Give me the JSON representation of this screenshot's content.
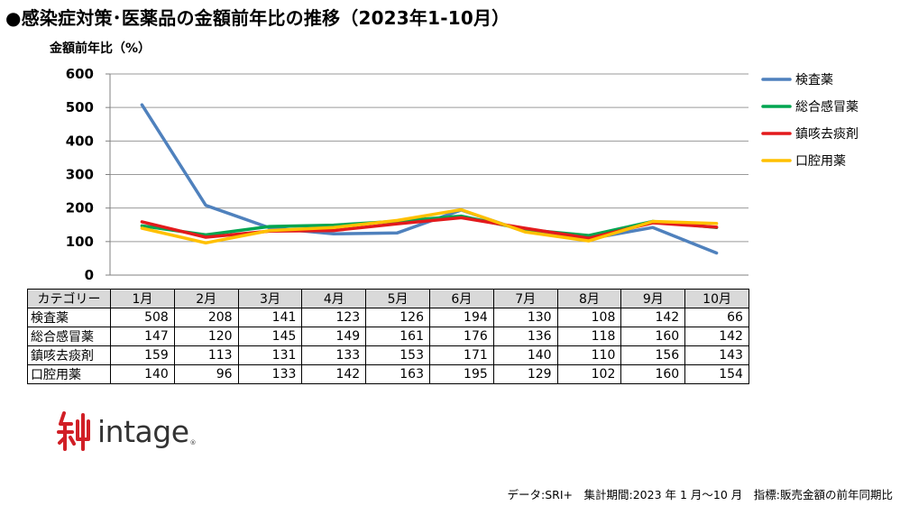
{
  "title": "●感染症対策･医薬品の金額前年比の推移（2023年1-10月）",
  "brand": {
    "name": "intage",
    "mark_color": "#d11f26",
    "text_color": "#333333"
  },
  "footnote": "データ:SRI+　集計期間:2023 年 1 月～10 月　指標:販売金額の前年同期比",
  "chart_data": {
    "type": "line",
    "title": "",
    "ylabel": "金額前年比（%）",
    "xlabel": "",
    "ylim": [
      0,
      600
    ],
    "yticks": [
      0,
      100,
      200,
      300,
      400,
      500,
      600
    ],
    "grid": true,
    "legend_position": "right",
    "category_header": "カテゴリー",
    "categories": [
      "1月",
      "2月",
      "3月",
      "4月",
      "5月",
      "6月",
      "7月",
      "8月",
      "9月",
      "10月"
    ],
    "series": [
      {
        "name": "検査薬",
        "color": "#4f81bd",
        "values": [
          508,
          208,
          141,
          123,
          126,
          194,
          130,
          108,
          142,
          66
        ]
      },
      {
        "name": "総合感冒薬",
        "color": "#00a550",
        "values": [
          147,
          120,
          145,
          149,
          161,
          176,
          136,
          118,
          160,
          142
        ]
      },
      {
        "name": "鎮咳去痰剤",
        "color": "#e31a1c",
        "values": [
          159,
          113,
          131,
          133,
          153,
          171,
          140,
          110,
          156,
          143
        ]
      },
      {
        "name": "口腔用薬",
        "color": "#ffc000",
        "values": [
          140,
          96,
          133,
          142,
          163,
          195,
          129,
          102,
          160,
          154
        ]
      }
    ]
  }
}
